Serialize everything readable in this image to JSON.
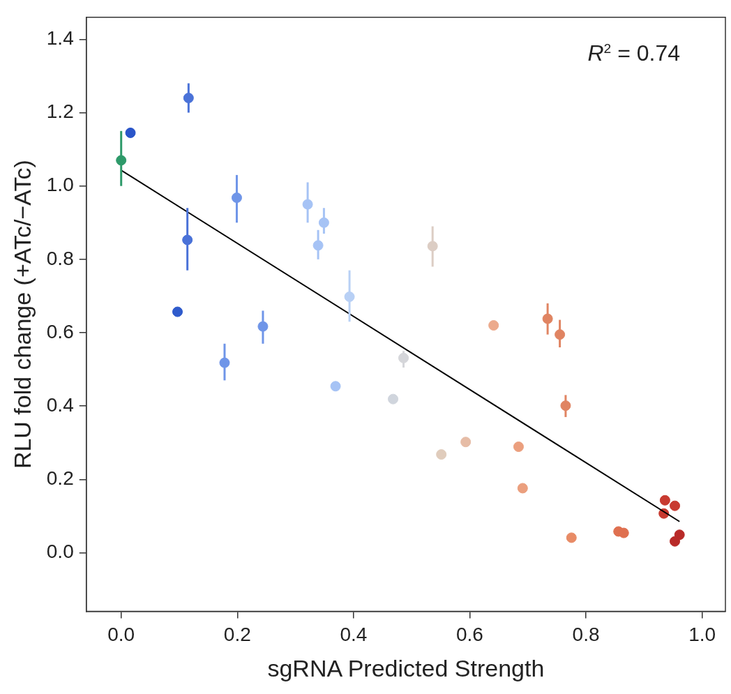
{
  "chart_data": {
    "type": "scatter",
    "xlabel": "sgRNA Predicted Strength",
    "ylabel": "RLU fold change (+ATc/−ATc)",
    "annotations": [
      "R$^{2}$ = 0.74"
    ],
    "xlim": [
      -0.06,
      1.04
    ],
    "ylim": [
      -0.16,
      1.46
    ],
    "xticks": [
      {
        "value": 0,
        "label": "0.0"
      },
      {
        "value": 0.2,
        "label": "0.2"
      },
      {
        "value": 0.4,
        "label": "0.4"
      },
      {
        "value": 0.6,
        "label": "0.6"
      },
      {
        "value": 0.8,
        "label": "0.8"
      },
      {
        "value": 1,
        "label": "1.0"
      }
    ],
    "yticks": [
      {
        "value": 0,
        "label": "0.0"
      },
      {
        "value": 0.2,
        "label": "0.2"
      },
      {
        "value": 0.4,
        "label": "0.4"
      },
      {
        "value": 0.6,
        "label": "0.6"
      },
      {
        "value": 0.8,
        "label": "0.8"
      },
      {
        "value": 1,
        "label": "1.0"
      },
      {
        "value": 1.2,
        "label": "1.2"
      },
      {
        "value": 1.4,
        "label": "1.4"
      }
    ],
    "grid": false,
    "legend": false,
    "series": [
      {
        "marker": "circle",
        "x": [
          0,
          0.016,
          0.116,
          0.114,
          0.097,
          0.199,
          0.178,
          0.244,
          0.321,
          0.349,
          0.339,
          0.393,
          0.369,
          0.468,
          0.486,
          0.536,
          0.551,
          0.593,
          0.641,
          0.684,
          0.691,
          0.734,
          0.755,
          0.765,
          0.775,
          0.856,
          0.865,
          0.936,
          0.953,
          0.934,
          0.961,
          0.953
        ],
        "values": [
          1.07,
          1.145,
          1.24,
          0.853,
          0.657,
          0.968,
          0.518,
          0.617,
          0.95,
          0.9,
          0.838,
          0.698,
          0.454,
          0.419,
          0.531,
          0.836,
          0.268,
          0.302,
          0.62,
          0.289,
          0.176,
          0.638,
          0.595,
          0.401,
          0.041,
          0.058,
          0.054,
          0.143,
          0.128,
          0.107,
          0.049,
          0.031
        ],
        "errors": [
          [
            1.0,
            1.15
          ],
          null,
          [
            1.2,
            1.28
          ],
          [
            0.77,
            0.94
          ],
          null,
          [
            0.9,
            1.03
          ],
          [
            0.47,
            0.57
          ],
          [
            0.57,
            0.66
          ],
          [
            0.9,
            1.01
          ],
          [
            0.87,
            0.94
          ],
          [
            0.8,
            0.88
          ],
          [
            0.63,
            0.77
          ],
          null,
          null,
          [
            0.505,
            0.55
          ],
          [
            0.78,
            0.89
          ],
          null,
          null,
          null,
          null,
          null,
          [
            0.595,
            0.68
          ],
          [
            0.56,
            0.635
          ],
          [
            0.37,
            0.43
          ],
          null,
          null,
          null,
          null,
          null,
          null,
          null,
          null
        ],
        "colors": [
          "#2e9a6a",
          "#2a55c9",
          "#4a72d8",
          "#4a72d8",
          "#2f5bcc",
          "#6f95e8",
          "#6f95e8",
          "#6f95e8",
          "#a6c3f5",
          "#a6c3f5",
          "#a6c3f5",
          "#b8d0f5",
          "#a6c3f5",
          "#d0d5dd",
          "#d5d6da",
          "#dccdc4",
          "#e0ccbc",
          "#e6bca6",
          "#ecaa8c",
          "#eb9f7e",
          "#eb9f7e",
          "#e08462",
          "#e08462",
          "#e08462",
          "#e88b66",
          "#df7050",
          "#df7050",
          "#c83a30",
          "#c83a30",
          "#c83a30",
          "#b82a28",
          "#b82a28"
        ]
      },
      {
        "type": "line",
        "marker": "none",
        "x": [
          0,
          0.961
        ],
        "values": [
          1.043,
          0.085
        ],
        "color": "#000000"
      }
    ]
  }
}
